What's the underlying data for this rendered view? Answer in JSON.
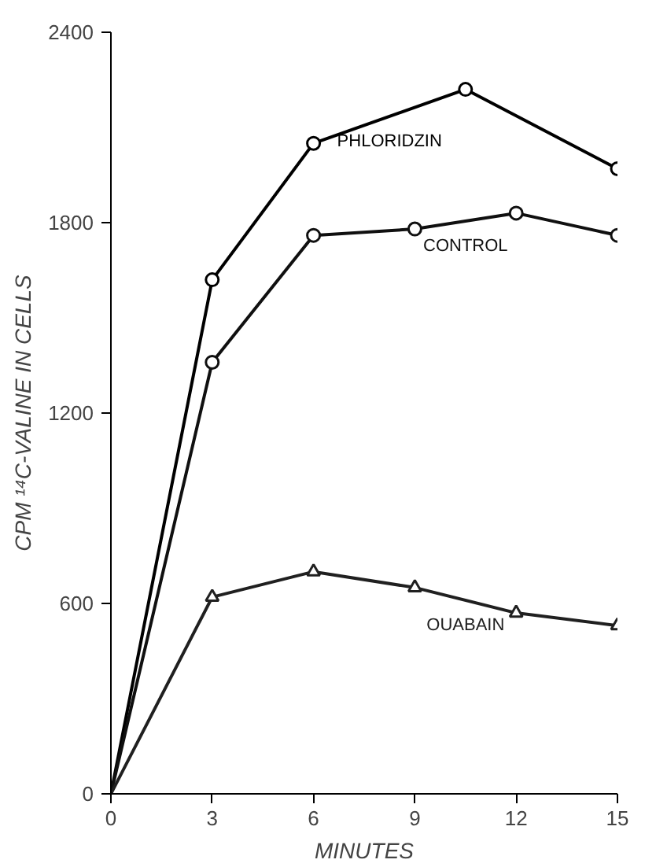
{
  "chart_data": {
    "type": "line",
    "xlabel": "MINUTES",
    "ylabel": "CPM ¹⁴C-VALINE IN CELLS",
    "xlim": [
      0,
      15
    ],
    "ylim": [
      0,
      2400
    ],
    "xticks": [
      0,
      3,
      6,
      9,
      12,
      15
    ],
    "yticks": [
      0,
      600,
      1200,
      1800,
      2400
    ],
    "grid": false,
    "series": [
      {
        "name": "PHLORIDZIN",
        "color": "#000000",
        "marker": "circle",
        "x": [
          0,
          3,
          6,
          10.5,
          15
        ],
        "values": [
          0,
          1620,
          2050,
          2220,
          1970
        ]
      },
      {
        "name": "CONTROL",
        "color": "#101010",
        "marker": "circle",
        "x": [
          0,
          3,
          6,
          9,
          12,
          15
        ],
        "values": [
          0,
          1360,
          1760,
          1780,
          1830,
          1760
        ]
      },
      {
        "name": "OUABAIN",
        "color": "#202020",
        "marker": "triangle",
        "x": [
          0,
          3,
          6,
          9,
          12,
          15
        ],
        "values": [
          0,
          620,
          700,
          650,
          570,
          530
        ]
      }
    ]
  }
}
